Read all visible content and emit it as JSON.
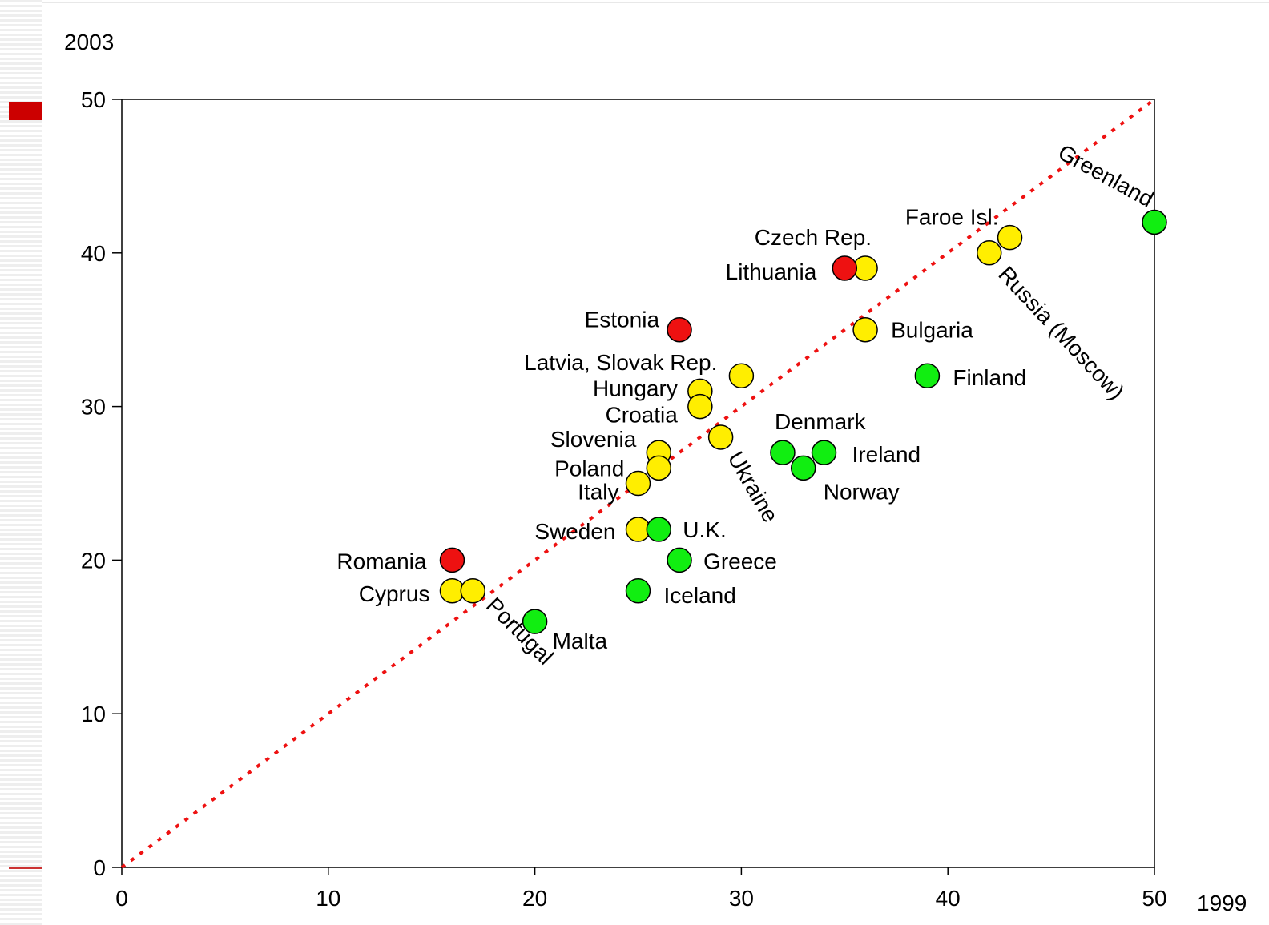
{
  "chart_data": {
    "type": "scatter",
    "title": "",
    "xlabel": "1999",
    "ylabel": "2003",
    "xlim": [
      0,
      50
    ],
    "ylim": [
      0,
      50
    ],
    "xticks": [
      0,
      10,
      20,
      30,
      40,
      50
    ],
    "yticks": [
      0,
      10,
      20,
      30,
      40,
      50
    ],
    "grid": false,
    "reference_line": {
      "from": [
        0,
        0
      ],
      "to": [
        50,
        50
      ],
      "style": "dotted",
      "color": "#ee1111"
    },
    "colors": {
      "red": "#ee1111",
      "yellow": "#ffee00",
      "green": "#11ee11"
    },
    "points": [
      {
        "label": "Greenland",
        "x": 50,
        "y": 42,
        "color": "green"
      },
      {
        "label": "Faroe Isl.",
        "x": 43,
        "y": 41,
        "color": "yellow"
      },
      {
        "label": "Russia (Moscow)",
        "x": 42,
        "y": 40,
        "color": "yellow"
      },
      {
        "label": "Czech Rep.",
        "x": 36,
        "y": 39,
        "color": "yellow"
      },
      {
        "label": "Lithuania",
        "x": 35,
        "y": 39,
        "color": "red"
      },
      {
        "label": "Bulgaria",
        "x": 36,
        "y": 35,
        "color": "yellow"
      },
      {
        "label": "Finland",
        "x": 39,
        "y": 32,
        "color": "green"
      },
      {
        "label": "Estonia",
        "x": 27,
        "y": 35,
        "color": "red"
      },
      {
        "label": "Latvia, Slovak Rep.",
        "x": 30,
        "y": 32,
        "color": "yellow"
      },
      {
        "label": "Hungary",
        "x": 28,
        "y": 31,
        "color": "yellow"
      },
      {
        "label": "Croatia",
        "x": 28,
        "y": 30,
        "color": "yellow"
      },
      {
        "label": "Ukraine",
        "x": 29,
        "y": 28,
        "color": "yellow"
      },
      {
        "label": "Denmark",
        "x": 32,
        "y": 27,
        "color": "green"
      },
      {
        "label": "Ireland",
        "x": 34,
        "y": 27,
        "color": "green"
      },
      {
        "label": "Norway",
        "x": 33,
        "y": 26,
        "color": "green"
      },
      {
        "label": "Slovenia",
        "x": 26,
        "y": 27,
        "color": "yellow"
      },
      {
        "label": "Poland",
        "x": 26,
        "y": 26,
        "color": "yellow"
      },
      {
        "label": "Italy",
        "x": 25,
        "y": 25,
        "color": "yellow"
      },
      {
        "label": "Sweden",
        "x": 25,
        "y": 22,
        "color": "yellow"
      },
      {
        "label": "U.K.",
        "x": 26,
        "y": 22,
        "color": "green"
      },
      {
        "label": "Greece",
        "x": 27,
        "y": 20,
        "color": "green"
      },
      {
        "label": "Iceland",
        "x": 25,
        "y": 18,
        "color": "green"
      },
      {
        "label": "Romania",
        "x": 16,
        "y": 20,
        "color": "red"
      },
      {
        "label": "Cyprus",
        "x": 16,
        "y": 18,
        "color": "yellow"
      },
      {
        "label": "Portugal",
        "x": 17,
        "y": 18,
        "color": "yellow"
      },
      {
        "label": "Malta",
        "x": 20,
        "y": 16,
        "color": "green"
      }
    ]
  }
}
